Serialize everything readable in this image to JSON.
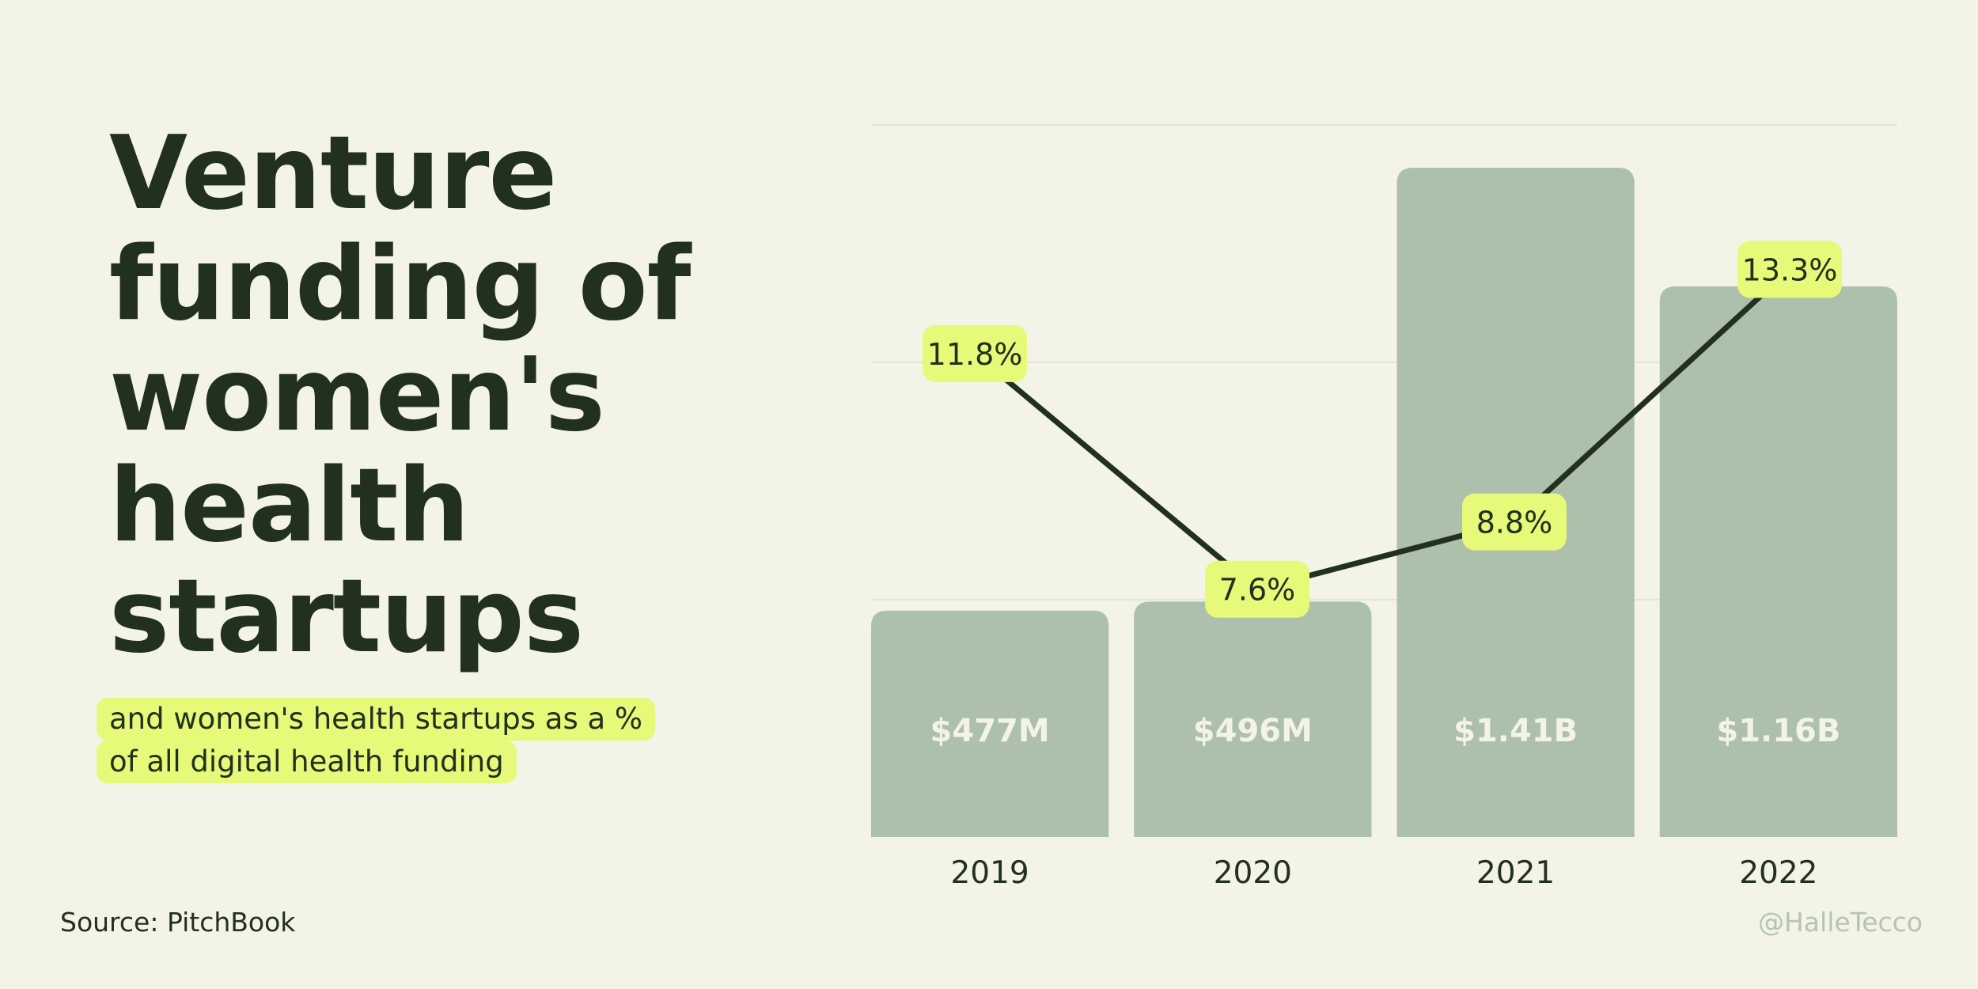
{
  "title": {
    "lines": [
      "Venture",
      "funding of",
      "women's",
      "health",
      "startups"
    ]
  },
  "subtitle": {
    "line1": "and women's health startups as a %",
    "line2": "of all digital health funding"
  },
  "source": "Source: PitchBook",
  "handle": "@HalleTecco",
  "colors": {
    "background": "#f3f3e8",
    "bar": "#adc0ab",
    "bar_label": "#f3f3e8",
    "line": "#21301f",
    "highlight": "#e6f978",
    "text": "#21301f",
    "grid": "#e4e4d7"
  },
  "chart_data": {
    "type": "bar",
    "title": "Venture funding of women's health startups",
    "categories": [
      "2019",
      "2020",
      "2021",
      "2022"
    ],
    "series": [
      {
        "name": "Venture funding",
        "type": "bar",
        "values": [
          477,
          496,
          1410,
          1160
        ],
        "units": "$M",
        "labels": [
          "$477M",
          "$496M",
          "$1.41B",
          "$1.16B"
        ]
      },
      {
        "name": "Share of all digital health funding",
        "type": "line",
        "values": [
          11.8,
          7.6,
          8.8,
          13.3
        ],
        "units": "%",
        "labels": [
          "11.8%",
          "7.6%",
          "8.8%",
          "13.3%"
        ]
      }
    ],
    "bar_axis": {
      "ylim": [
        0,
        1500
      ],
      "gridlines": [
        500,
        1000,
        1500
      ]
    },
    "line_axis": {
      "ylim": [
        4,
        15
      ]
    },
    "xlabel": "",
    "ylabel": "",
    "grid": true,
    "legend": "none"
  }
}
